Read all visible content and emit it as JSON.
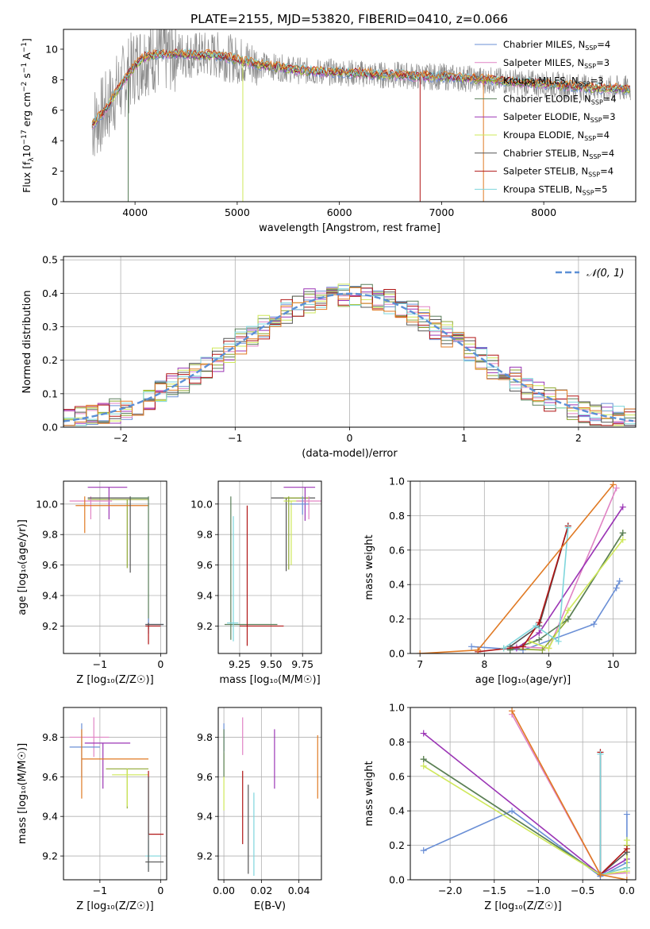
{
  "figure_title": "PLATE=2155, MJD=53820, FIBERID=0410, z=0.066",
  "colors": {
    "model_palette": [
      "#6a8fd6",
      "#e083c4",
      "#8fa832",
      "#5a7f5a",
      "#9b35b5",
      "#cfe85a",
      "#555555",
      "#b01515",
      "#7ed6dc"
    ],
    "orange": "#e07a24",
    "data_grey": "#8c8c8c",
    "normal_curve": "#5b8fd6"
  },
  "chart_data": [
    {
      "id": "spectrum",
      "type": "line",
      "xlabel": "wavelength [Angstrom, rest frame]",
      "ylabel_parts": [
        "Flux [f",
        "λ",
        "10",
        "−17",
        " erg cm",
        "−2",
        " s",
        "−1",
        " A",
        "−1",
        "]"
      ],
      "xlim": [
        3300,
        8900
      ],
      "ylim": [
        0,
        11.3
      ],
      "xticks": [
        4000,
        5000,
        6000,
        7000,
        8000
      ],
      "yticks": [
        0,
        2,
        4,
        6,
        8,
        10
      ],
      "grid": false,
      "legend_position": "top-right",
      "legend": [
        {
          "pre": "Chabrier MILES, N",
          "sub": "SSP",
          "post": "=4"
        },
        {
          "pre": "Salpeter MILES, N",
          "sub": "SSP",
          "post": "=3"
        },
        {
          "pre": "Kroupa MILES, N",
          "sub": "SSP",
          "post": "=3"
        },
        {
          "pre": "Chabrier ELODIE, N",
          "sub": "SSP",
          "post": "=4"
        },
        {
          "pre": "Salpeter ELODIE, N",
          "sub": "SSP",
          "post": "=3"
        },
        {
          "pre": "Kroupa ELODIE, N",
          "sub": "SSP",
          "post": "=4"
        },
        {
          "pre": "Chabrier STELIB, N",
          "sub": "SSP",
          "post": "=4"
        },
        {
          "pre": "Salpeter STELIB, N",
          "sub": "SSP",
          "post": "=4"
        },
        {
          "pre": "Kroupa STELIB, N",
          "sub": "SSP",
          "post": "=5"
        }
      ],
      "continuum": [
        [
          3580,
          5.0
        ],
        [
          3700,
          5.9
        ],
        [
          3800,
          7.0
        ],
        [
          3900,
          8.0
        ],
        [
          4000,
          8.9
        ],
        [
          4100,
          9.5
        ],
        [
          4200,
          9.6
        ],
        [
          4400,
          9.7
        ],
        [
          4600,
          9.6
        ],
        [
          4800,
          9.6
        ],
        [
          5000,
          9.3
        ],
        [
          5200,
          9.0
        ],
        [
          5400,
          8.8
        ],
        [
          5600,
          8.6
        ],
        [
          5800,
          8.5
        ],
        [
          6000,
          8.5
        ],
        [
          6200,
          8.4
        ],
        [
          6400,
          8.3
        ],
        [
          6600,
          8.3
        ],
        [
          6800,
          8.2
        ],
        [
          7000,
          8.2
        ],
        [
          7200,
          8.1
        ],
        [
          7400,
          8.0
        ],
        [
          7600,
          7.9
        ],
        [
          7800,
          7.8
        ],
        [
          8000,
          7.7
        ],
        [
          8200,
          7.6
        ],
        [
          8400,
          7.5
        ],
        [
          8600,
          7.4
        ],
        [
          8800,
          7.4
        ]
      ],
      "absorption_features": [
        {
          "x": 3933,
          "min": 0.0
        },
        {
          "x": 5055,
          "min": 0.0
        },
        {
          "x": 6790,
          "min": 0.0
        },
        {
          "x": 7410,
          "min": 0.0
        }
      ]
    },
    {
      "id": "residuals",
      "type": "bar",
      "xlabel": "(data-model)/error",
      "ylabel": "Normed distribution",
      "xlim": [
        -2.5,
        2.5
      ],
      "ylim": [
        0,
        0.51
      ],
      "xticks": [
        -2,
        -1,
        0,
        1,
        2
      ],
      "yticks": [
        0.0,
        0.1,
        0.2,
        0.3,
        0.4,
        0.5
      ],
      "grid": true,
      "legend_position": "top-right",
      "legend": [
        {
          "label": "𝒩(0, 1)"
        }
      ],
      "bin_width": 0.1
    },
    {
      "id": "age-vs-Z",
      "type": "scatter",
      "xlabel": "Z [log₁₀(Z/Z☉)]",
      "ylabel": "age  [log₁₀(age/yr)]",
      "xlim": [
        -1.6,
        0.1
      ],
      "ylim": [
        9.02,
        10.15
      ],
      "xticks": [
        -1,
        0
      ],
      "yticks": [
        9.2,
        9.4,
        9.6,
        9.8,
        10.0
      ],
      "grid": true,
      "crosses": [
        {
          "c": 2,
          "x": -0.55,
          "y": 10.03,
          "xlo": -1.2,
          "xhi": -0.2,
          "ylo": 9.58,
          "yhi": 10.03
        },
        {
          "c": 4,
          "x": -0.85,
          "y": 10.11,
          "xlo": -1.2,
          "xhi": -0.55,
          "ylo": 9.9,
          "yhi": 10.11
        },
        {
          "c": 1,
          "x": -1.15,
          "y": 10.02,
          "xlo": -1.5,
          "xhi": -0.8,
          "ylo": 9.9,
          "yhi": 10.05
        },
        {
          "c": 9,
          "x": -1.25,
          "y": 9.99,
          "xlo": -1.4,
          "xhi": -0.2,
          "ylo": 9.81,
          "yhi": 10.05
        },
        {
          "c": 6,
          "x": -0.5,
          "y": 10.04,
          "xlo": -1.2,
          "xhi": -0.2,
          "ylo": 9.55,
          "yhi": 10.05
        },
        {
          "c": 3,
          "x": -0.2,
          "y": 10.04,
          "xlo": -0.5,
          "xhi": -0.2,
          "ylo": 9.18,
          "yhi": 10.05
        },
        {
          "c": 0,
          "x": -0.2,
          "y": 9.21,
          "xlo": -0.25,
          "xhi": 0.05,
          "ylo": 9.15,
          "yhi": 9.25
        },
        {
          "c": 7,
          "x": -0.2,
          "y": 9.2,
          "xlo": -0.25,
          "xhi": 0.0,
          "ylo": 9.08,
          "yhi": 9.22
        },
        {
          "c": 6,
          "x": -0.2,
          "y": 9.21,
          "xlo": -0.25,
          "xhi": 0.05,
          "ylo": 9.2,
          "yhi": 9.22
        }
      ]
    },
    {
      "id": "age-vs-mass",
      "type": "scatter",
      "xlabel": "mass [log₁₀(M/M☉)]",
      "ylabel": "",
      "xlim": [
        9.08,
        9.9
      ],
      "ylim": [
        9.02,
        10.15
      ],
      "xticks": [
        9.25,
        9.5,
        9.75
      ],
      "xtick_labels": [
        "9.25",
        "9.50",
        "9.75"
      ],
      "yticks": [
        9.2,
        9.4,
        9.6,
        9.8,
        10.0
      ],
      "grid": true,
      "crosses": [
        {
          "c": 3,
          "x": 9.18,
          "y": 9.21,
          "xlo": 9.13,
          "xhi": 9.55,
          "ylo": 9.11,
          "yhi": 10.05
        },
        {
          "c": 8,
          "x": 9.2,
          "y": 9.22,
          "xlo": 9.15,
          "xhi": 9.24,
          "ylo": 9.1,
          "yhi": 9.92
        },
        {
          "c": 7,
          "x": 9.31,
          "y": 9.2,
          "xlo": 9.25,
          "xhi": 9.6,
          "ylo": 9.07,
          "yhi": 9.99
        },
        {
          "c": 6,
          "x": 9.62,
          "y": 10.04,
          "xlo": 9.5,
          "xhi": 9.85,
          "ylo": 9.56,
          "yhi": 10.04
        },
        {
          "c": 5,
          "x": 9.66,
          "y": 10.02,
          "xlo": 9.6,
          "xhi": 9.8,
          "ylo": 9.6,
          "yhi": 10.02
        },
        {
          "c": 2,
          "x": 9.64,
          "y": 10.04,
          "xlo": 9.6,
          "xhi": 9.8,
          "ylo": 9.57,
          "yhi": 10.05
        },
        {
          "c": 4,
          "x": 9.77,
          "y": 10.11,
          "xlo": 9.6,
          "xhi": 9.85,
          "ylo": 9.89,
          "yhi": 10.11
        },
        {
          "c": 1,
          "x": 9.8,
          "y": 10.02,
          "xlo": 9.7,
          "xhi": 9.9,
          "ylo": 9.9,
          "yhi": 10.05
        },
        {
          "c": 0,
          "x": 9.75,
          "y": 10.0,
          "xlo": 9.65,
          "xhi": 9.8,
          "ylo": 9.93,
          "yhi": 10.05
        }
      ]
    },
    {
      "id": "weight-vs-age",
      "type": "line",
      "xlabel": "age  [log₁₀(age/yr)]",
      "ylabel": "mass weight",
      "xlim": [
        6.85,
        10.35
      ],
      "ylim": [
        0,
        1.0
      ],
      "xticks": [
        7,
        8,
        9,
        10
      ],
      "yticks": [
        0.0,
        0.2,
        0.4,
        0.6,
        0.8,
        1.0
      ],
      "grid": true,
      "series": [
        {
          "c": 0,
          "points": [
            [
              7.8,
              0.04
            ],
            [
              8.6,
              0.02
            ],
            [
              9.7,
              0.17
            ],
            [
              10.05,
              0.38
            ],
            [
              10.1,
              0.42
            ]
          ]
        },
        {
          "c": 1,
          "points": [
            [
              8.5,
              0.04
            ],
            [
              9.0,
              0.03
            ],
            [
              10.05,
              0.96
            ]
          ]
        },
        {
          "c": 2,
          "points": [
            [
              8.3,
              0.03
            ],
            [
              8.9,
              0.02
            ],
            [
              9.3,
              0.2
            ],
            [
              10.15,
              0.7
            ]
          ]
        },
        {
          "c": 3,
          "points": [
            [
              8.4,
              0.02
            ],
            [
              8.85,
              0.08
            ],
            [
              9.3,
              0.2
            ],
            [
              10.15,
              0.7
            ]
          ]
        },
        {
          "c": 4,
          "points": [
            [
              8.5,
              0.03
            ],
            [
              8.85,
              0.12
            ],
            [
              10.15,
              0.85
            ]
          ]
        },
        {
          "c": 5,
          "points": [
            [
              8.7,
              0.07
            ],
            [
              9.0,
              0.03
            ],
            [
              9.3,
              0.25
            ],
            [
              10.15,
              0.66
            ]
          ]
        },
        {
          "c": 6,
          "points": [
            [
              8.4,
              0.04
            ],
            [
              8.85,
              0.16
            ],
            [
              9.3,
              0.74
            ]
          ]
        },
        {
          "c": 7,
          "points": [
            [
              7.9,
              0.01
            ],
            [
              8.6,
              0.04
            ],
            [
              8.85,
              0.18
            ],
            [
              9.3,
              0.74
            ]
          ]
        },
        {
          "c": 8,
          "points": [
            [
              8.3,
              0.03
            ],
            [
              8.8,
              0.16
            ],
            [
              9.15,
              0.07
            ],
            [
              9.3,
              0.73
            ]
          ]
        },
        {
          "c": 9,
          "points": [
            [
              7.0,
              0.0
            ],
            [
              7.9,
              0.02
            ],
            [
              10.0,
              0.98
            ]
          ]
        }
      ]
    },
    {
      "id": "mass-vs-Z",
      "type": "scatter",
      "xlabel": "Z [log₁₀(Z/Z☉)]",
      "ylabel": "mass [log₁₀(M/M☉)]",
      "xlim": [
        -1.6,
        0.1
      ],
      "ylim": [
        9.08,
        9.95
      ],
      "xticks": [
        -1,
        0
      ],
      "yticks": [
        9.2,
        9.4,
        9.6,
        9.8
      ],
      "grid": true,
      "crosses": [
        {
          "c": 1,
          "x": -1.1,
          "y": 9.8,
          "xlo": -1.5,
          "xhi": -0.85,
          "ylo": 9.7,
          "yhi": 9.9
        },
        {
          "c": 4,
          "x": -0.95,
          "y": 9.77,
          "xlo": -1.25,
          "xhi": -0.5,
          "ylo": 9.54,
          "yhi": 9.77
        },
        {
          "c": 0,
          "x": -1.3,
          "y": 9.75,
          "xlo": -1.5,
          "xhi": -1.0,
          "ylo": 9.6,
          "yhi": 9.87
        },
        {
          "c": 9,
          "x": -1.3,
          "y": 9.69,
          "xlo": -1.3,
          "xhi": -0.2,
          "ylo": 9.49,
          "yhi": 9.84
        },
        {
          "c": 2,
          "x": -0.55,
          "y": 9.64,
          "xlo": -0.9,
          "xhi": -0.2,
          "ylo": 9.44,
          "yhi": 9.64
        },
        {
          "c": 5,
          "x": -0.55,
          "y": 9.61,
          "xlo": -0.8,
          "xhi": -0.2,
          "ylo": 9.45,
          "yhi": 9.64
        },
        {
          "c": 7,
          "x": -0.2,
          "y": 9.31,
          "xlo": -0.2,
          "xhi": 0.05,
          "ylo": 9.31,
          "yhi": 9.63
        },
        {
          "c": 8,
          "x": -0.2,
          "y": 9.2,
          "xlo": -0.25,
          "xhi": 0.0,
          "ylo": 9.13,
          "yhi": 9.28
        },
        {
          "c": 6,
          "x": -0.2,
          "y": 9.17,
          "xlo": -0.25,
          "xhi": 0.05,
          "ylo": 9.12,
          "yhi": 9.6
        }
      ]
    },
    {
      "id": "mass-vs-ebv",
      "type": "scatter",
      "xlabel": "E(B-V)",
      "ylabel": "",
      "xlim": [
        -0.003,
        0.052
      ],
      "ylim": [
        9.08,
        9.95
      ],
      "xticks": [
        0.0,
        0.02,
        0.04
      ],
      "xtick_labels": [
        "0.00",
        "0.02",
        "0.04"
      ],
      "yticks": [
        9.2,
        9.4,
        9.6,
        9.8
      ],
      "grid": true,
      "crosses": [
        {
          "c": 5,
          "x": 0.0,
          "y": 9.6,
          "xlo": 0.0,
          "xhi": 0.0,
          "ylo": 9.43,
          "yhi": 9.72
        },
        {
          "c": 0,
          "x": 0.0,
          "y": 9.8,
          "xlo": 0.0,
          "xhi": 0.0,
          "ylo": 9.73,
          "yhi": 9.87
        },
        {
          "c": 3,
          "x": 0.0,
          "y": 9.7,
          "xlo": 0.0,
          "xhi": 0.0,
          "ylo": 9.6,
          "yhi": 9.84
        },
        {
          "c": 1,
          "x": 0.01,
          "y": 9.82,
          "xlo": 0.01,
          "xhi": 0.01,
          "ylo": 9.71,
          "yhi": 9.9
        },
        {
          "c": 7,
          "x": 0.01,
          "y": 9.45,
          "xlo": 0.01,
          "xhi": 0.01,
          "ylo": 9.26,
          "yhi": 9.63
        },
        {
          "c": 6,
          "x": 0.013,
          "y": 9.35,
          "xlo": 0.013,
          "xhi": 0.013,
          "ylo": 9.11,
          "yhi": 9.56
        },
        {
          "c": 8,
          "x": 0.016,
          "y": 9.3,
          "xlo": 0.016,
          "xhi": 0.016,
          "ylo": 9.1,
          "yhi": 9.52
        },
        {
          "c": 4,
          "x": 0.027,
          "y": 9.7,
          "xlo": 0.027,
          "xhi": 0.027,
          "ylo": 9.54,
          "yhi": 9.84
        },
        {
          "c": 9,
          "x": 0.05,
          "y": 9.65,
          "xlo": 0.05,
          "xhi": 0.05,
          "ylo": 9.49,
          "yhi": 9.81
        }
      ]
    },
    {
      "id": "weight-vs-Z",
      "type": "line",
      "xlabel": "Z [log₁₀(Z/Z☉)]",
      "ylabel": "mass weight",
      "xlim": [
        -2.45,
        0.1
      ],
      "ylim": [
        0,
        1.0
      ],
      "xticks": [
        -2.0,
        -1.5,
        -1.0,
        -0.5,
        0.0
      ],
      "xtick_labels": [
        "−2.0",
        "−1.5",
        "−1.0",
        "−0.5",
        "0.0"
      ],
      "yticks": [
        0.0,
        0.2,
        0.4,
        0.6,
        0.8,
        1.0
      ],
      "grid": true,
      "series": [
        {
          "c": 0,
          "points": [
            [
              -2.3,
              0.17
            ],
            [
              -1.3,
              0.4
            ],
            [
              -0.3,
              0.02
            ],
            [
              0.0,
              0.1
            ],
            [
              0.0,
              0.38
            ]
          ]
        },
        {
          "c": 1,
          "points": [
            [
              -1.3,
              0.96
            ],
            [
              -0.3,
              0.03
            ],
            [
              0.0,
              0.04
            ]
          ]
        },
        {
          "c": 2,
          "points": [
            [
              -2.3,
              0.7
            ],
            [
              -0.3,
              0.03
            ],
            [
              0.0,
              0.07
            ],
            [
              0.0,
              0.2
            ]
          ]
        },
        {
          "c": 3,
          "points": [
            [
              -2.3,
              0.7
            ],
            [
              -0.3,
              0.03
            ],
            [
              0.0,
              0.07
            ]
          ]
        },
        {
          "c": 4,
          "points": [
            [
              -2.3,
              0.85
            ],
            [
              -0.3,
              0.03
            ],
            [
              0.0,
              0.12
            ]
          ]
        },
        {
          "c": 5,
          "points": [
            [
              -2.3,
              0.66
            ],
            [
              -0.3,
              0.03
            ],
            [
              0.0,
              0.05
            ],
            [
              0.0,
              0.23
            ]
          ]
        },
        {
          "c": 6,
          "points": [
            [
              -0.3,
              0.74
            ],
            [
              -0.3,
              0.03
            ],
            [
              0.0,
              0.16
            ]
          ]
        },
        {
          "c": 7,
          "points": [
            [
              -0.3,
              0.74
            ],
            [
              -0.3,
              0.03
            ],
            [
              0.0,
              0.18
            ]
          ]
        },
        {
          "c": 8,
          "points": [
            [
              -0.3,
              0.73
            ],
            [
              -0.3,
              0.03
            ],
            [
              0.0,
              0.07
            ]
          ]
        },
        {
          "c": 9,
          "points": [
            [
              -1.3,
              0.98
            ],
            [
              -0.3,
              0.03
            ],
            [
              0.0,
              0.0
            ]
          ]
        }
      ]
    }
  ]
}
